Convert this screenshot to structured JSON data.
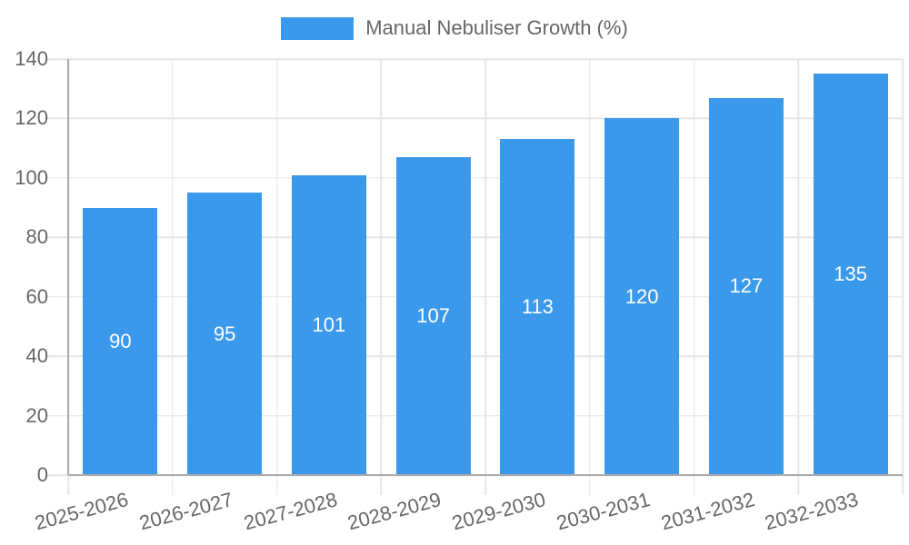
{
  "chart_data": {
    "type": "bar",
    "title": "Manual Nebuliser Growth (%)",
    "categories": [
      "2025-2026",
      "2026-2027",
      "2027-2028",
      "2028-2029",
      "2029-2030",
      "2030-2031",
      "2031-2032",
      "2032-2033"
    ],
    "values": [
      90,
      95,
      101,
      107,
      113,
      120,
      127,
      135
    ],
    "xlabel": "",
    "ylabel": "",
    "ylim": [
      0,
      140
    ],
    "y_ticks": [
      0,
      20,
      40,
      60,
      80,
      100,
      120,
      140
    ],
    "grid": true,
    "legend_position": "top",
    "bar_color": "#3b99ec",
    "value_label_color": "#ffffff",
    "axis_text_color": "#666666",
    "gridline_color": "#e6e6e6",
    "axis_line_color": "#ababab"
  },
  "legend": {
    "label": "Manual Nebuliser Growth (%)"
  }
}
